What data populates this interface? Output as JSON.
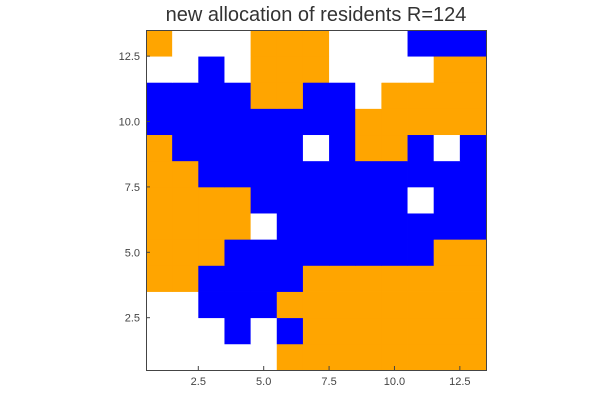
{
  "chart_data": {
    "type": "heatmap",
    "title": "new allocation of residents R=124",
    "xlabel": "",
    "ylabel": "",
    "xlim": [
      0.5,
      13.5
    ],
    "ylim": [
      13.5,
      0.5
    ],
    "x_ticks": [
      2.5,
      5.0,
      7.5,
      10.0,
      12.5
    ],
    "x_tick_labels": [
      "2.5",
      "5.0",
      "7.5",
      "10.0",
      "12.5"
    ],
    "y_ticks": [
      2.5,
      5.0,
      7.5,
      10.0,
      12.5
    ],
    "y_tick_labels": [
      "2.5",
      "5.0",
      "7.5",
      "10.0",
      "12.5"
    ],
    "grid": false,
    "legend": "none",
    "colors": {
      "0": "#ffffff",
      "1": "#ffa500",
      "2": "#0000ff"
    },
    "category_names": {
      "0": "empty",
      "1": "orange",
      "2": "blue"
    },
    "grid_values": [
      [
        0,
        0,
        0,
        0,
        0,
        1,
        1,
        1,
        1,
        1,
        1,
        1,
        1
      ],
      [
        0,
        0,
        0,
        2,
        0,
        2,
        1,
        1,
        1,
        1,
        1,
        1,
        1
      ],
      [
        0,
        0,
        2,
        2,
        2,
        1,
        1,
        1,
        1,
        1,
        1,
        1,
        1
      ],
      [
        1,
        1,
        2,
        2,
        2,
        2,
        1,
        1,
        1,
        1,
        1,
        1,
        1
      ],
      [
        1,
        1,
        1,
        2,
        2,
        2,
        2,
        2,
        2,
        2,
        2,
        1,
        1
      ],
      [
        1,
        1,
        1,
        1,
        0,
        2,
        2,
        2,
        2,
        2,
        2,
        2,
        2
      ],
      [
        1,
        1,
        1,
        1,
        2,
        2,
        2,
        2,
        2,
        2,
        0,
        2,
        2
      ],
      [
        1,
        1,
        2,
        2,
        2,
        2,
        2,
        2,
        2,
        2,
        2,
        2,
        2
      ],
      [
        1,
        2,
        2,
        2,
        2,
        2,
        0,
        2,
        1,
        1,
        2,
        0,
        2
      ],
      [
        2,
        2,
        2,
        2,
        2,
        2,
        2,
        2,
        1,
        1,
        1,
        1,
        1
      ],
      [
        2,
        2,
        2,
        2,
        1,
        1,
        2,
        2,
        0,
        1,
        1,
        1,
        1
      ],
      [
        0,
        0,
        2,
        0,
        1,
        1,
        1,
        0,
        0,
        0,
        0,
        1,
        1
      ],
      [
        1,
        0,
        0,
        0,
        1,
        1,
        1,
        0,
        0,
        0,
        2,
        2,
        2
      ]
    ]
  }
}
